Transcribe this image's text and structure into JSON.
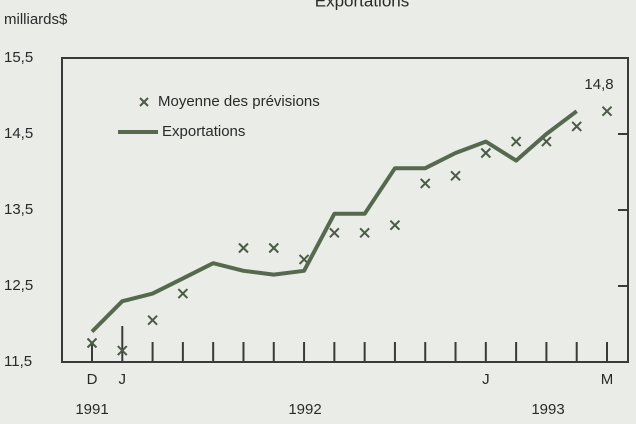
{
  "chart_data": {
    "type": "line",
    "title": "Exportations",
    "y_label": "milliards$",
    "categories": [
      "D",
      "J",
      null,
      null,
      null,
      null,
      null,
      null,
      null,
      null,
      null,
      null,
      null,
      "J",
      null,
      null,
      null,
      "M"
    ],
    "year_labels": [
      "1991",
      "1992",
      "1993"
    ],
    "series": [
      {
        "name": "Moyenne des prévisions",
        "color": "#4a5a46",
        "marker": "x",
        "values": [
          11.75,
          11.65,
          12.05,
          12.4,
          null,
          13.0,
          13.0,
          12.85,
          13.2,
          13.2,
          13.3,
          13.85,
          13.95,
          14.25,
          14.4,
          14.4,
          14.6,
          14.8
        ],
        "value_labels": [
          null,
          null,
          null,
          null,
          null,
          null,
          null,
          null,
          null,
          null,
          null,
          null,
          null,
          null,
          null,
          null,
          null,
          "14,8"
        ]
      },
      {
        "name": "Exportations",
        "color": "#56694f",
        "marker": "line",
        "values": [
          11.9,
          12.3,
          12.4,
          12.6,
          12.8,
          12.7,
          12.65,
          12.7,
          13.45,
          13.45,
          14.05,
          14.05,
          14.25,
          14.4,
          14.15,
          14.5,
          14.8,
          null
        ]
      }
    ],
    "ylim": [
      11.5,
      15.5
    ],
    "yticks": [
      {
        "value": 11.5,
        "label": "11,5"
      },
      {
        "value": 12.5,
        "label": "12,5"
      },
      {
        "value": 13.5,
        "label": "13,5"
      },
      {
        "value": 14.5,
        "label": "14,5"
      },
      {
        "value": 15.5,
        "label": "15,5"
      }
    ],
    "legend": "upper left"
  }
}
